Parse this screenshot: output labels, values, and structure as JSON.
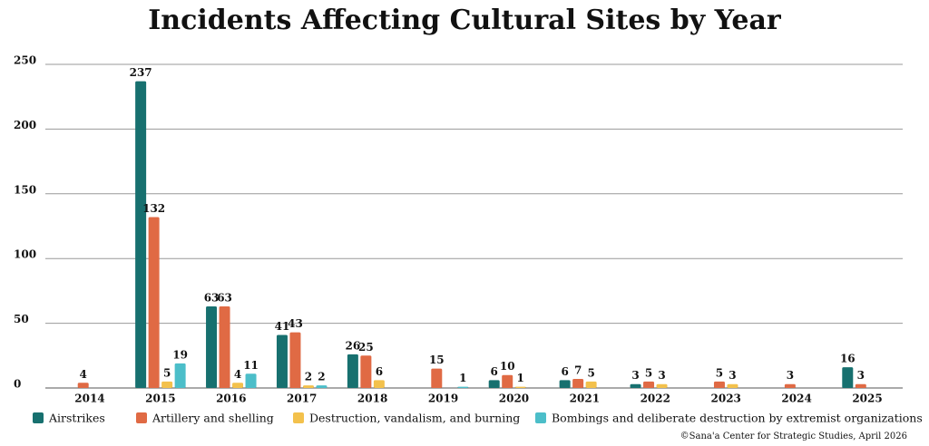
{
  "chart_data": {
    "type": "bar",
    "title": "Incidents Affecting Cultural Sites by Year",
    "categories": [
      "2014",
      "2015",
      "2016",
      "2017",
      "2018",
      "2019",
      "2020",
      "2021",
      "2022",
      "2023",
      "2024",
      "2025"
    ],
    "series": [
      {
        "name": "Airstrikes",
        "color": "#17706f",
        "values": [
          null,
          237,
          63,
          41,
          26,
          null,
          6,
          6,
          3,
          null,
          null,
          16
        ]
      },
      {
        "name": "Artillery and shelling",
        "color": "#e06a44",
        "values": [
          4,
          132,
          63,
          43,
          25,
          15,
          10,
          7,
          5,
          5,
          3,
          3
        ]
      },
      {
        "name": "Destruction, vandalism, and burning",
        "color": "#f3c14c",
        "values": [
          null,
          5,
          4,
          2,
          6,
          null,
          1,
          5,
          3,
          3,
          null,
          null
        ]
      },
      {
        "name": "Bombings and deliberate destruction by extremist organizations",
        "color": "#4cbec9",
        "values": [
          null,
          19,
          11,
          2,
          null,
          1,
          null,
          null,
          null,
          null,
          null,
          null
        ]
      }
    ],
    "ylim": [
      0,
      250
    ],
    "yticks": [
      0,
      50,
      100,
      150,
      200,
      250
    ],
    "grid": true,
    "source": "Sana'a Center for Strategic Studies, April 2026"
  }
}
